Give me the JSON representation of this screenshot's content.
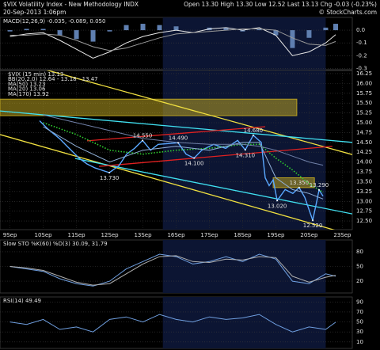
{
  "header": {
    "title": "$VIX Volatility Index - New Methodology INDX",
    "date": "20-Sep-2013 1:06pm",
    "quote": "Open 13.30 High 13.30 Low 12.52 Last 13.13 Chg -0.03 (-0.23%)",
    "source": "© StockCharts.com"
  },
  "chart_data": [
    {
      "type": "line",
      "title": "MACD(12,26,9) -0.035, -0.089, 0.050",
      "x": [
        0,
        0.5,
        1,
        1.5,
        2,
        2.5,
        3,
        3.5,
        4,
        4.5,
        5,
        5.5,
        6,
        6.5,
        7,
        7.5,
        8,
        8.5,
        9,
        9.5,
        9.8
      ],
      "xlim": [
        -0.3,
        10.3
      ],
      "ylim": [
        -0.31,
        0.1
      ],
      "yticks": [
        {
          "value": 0,
          "label": "0.0"
        },
        -0.1,
        -0.2,
        -0.3
      ],
      "grid": true,
      "series": [
        {
          "type": "bar",
          "color": "#5f7fb0",
          "values": [
            -0.01,
            0.01,
            0.01,
            -0.04,
            -0.07,
            -0.09,
            -0.01,
            0.04,
            0.05,
            0.04,
            0.03,
            0.0,
            0.02,
            0.02,
            -0.01,
            0.01,
            -0.04,
            -0.14,
            -0.06,
            0.02,
            0.05
          ]
        },
        {
          "type": "line",
          "color": "#e8e8e8",
          "values": [
            -0.05,
            -0.03,
            -0.02,
            -0.08,
            -0.15,
            -0.22,
            -0.17,
            -0.1,
            -0.05,
            -0.02,
            0.0,
            -0.02,
            0.01,
            0.02,
            0.0,
            0.02,
            -0.04,
            -0.2,
            -0.17,
            -0.1,
            -0.035
          ]
        },
        {
          "type": "line",
          "color": "#9a9a9a",
          "values": [
            -0.04,
            -0.04,
            -0.03,
            -0.04,
            -0.08,
            -0.13,
            -0.16,
            -0.14,
            -0.1,
            -0.06,
            -0.03,
            -0.02,
            -0.01,
            0.0,
            0.01,
            0.01,
            0.0,
            -0.06,
            -0.11,
            -0.12,
            -0.089
          ]
        }
      ]
    },
    {
      "type": "line",
      "bands_label": "BB(20,2.0) 12.64 - 13.18 - 13.47",
      "bands_color": "#b070d0",
      "xlim": [
        -0.3,
        10.3
      ],
      "ylim": [
        12.28,
        16.33
      ],
      "xticks": [
        {
          "value": 0,
          "label": "9Sep"
        },
        {
          "value": 1,
          "label": "10Sep"
        },
        {
          "value": 2,
          "label": "11Sep"
        },
        {
          "value": 3,
          "label": "12Sep"
        },
        {
          "value": 4,
          "label": "13Sep"
        },
        {
          "value": 5,
          "label": "16Sep"
        },
        {
          "value": 6,
          "label": "17Sep"
        },
        {
          "value": 7,
          "label": "18Sep"
        },
        {
          "value": 8,
          "label": "19Sep"
        },
        {
          "value": 9,
          "label": "20Sep"
        },
        {
          "value": 10,
          "label": "23Sep"
        }
      ],
      "yticks": [
        16.25,
        {
          "value": 16,
          "label": "16.00"
        },
        15.75,
        {
          "value": 15.5,
          "label": "15.50"
        },
        15.25,
        {
          "value": 15,
          "label": "15.00"
        },
        14.75,
        {
          "value": 14.5,
          "label": "14.50"
        },
        14.25,
        {
          "value": 14,
          "label": "14.00"
        },
        13.75,
        {
          "value": 13.5,
          "label": "13.50"
        },
        13.25,
        {
          "value": 13,
          "label": "13.00"
        },
        12.75,
        {
          "value": 12.5,
          "label": "12.50"
        }
      ],
      "grid": true,
      "boxes": [
        {
          "color": "#b8a020",
          "x": [
            -0.3,
            8.63
          ],
          "values": [
            15.6,
            15.18
          ]
        },
        {
          "color": "#b8a020",
          "x": [
            7.92,
            9.16
          ],
          "values": [
            13.6,
            13.35
          ]
        }
      ],
      "trendlines": [
        {
          "color": "#f0e040",
          "x": [
            -0.3,
            10.3
          ],
          "values": [
            16.67,
            14.19
          ]
        },
        {
          "color": "#f0e040",
          "x": [
            -0.3,
            10.3
          ],
          "values": [
            14.7,
            12.14
          ]
        },
        {
          "color": "#40e0f0",
          "x": [
            -0.3,
            10.3
          ],
          "values": [
            15.3,
            14.5
          ]
        },
        {
          "color": "#40e0f0",
          "x": [
            1.96,
            10.3
          ],
          "values": [
            14.09,
            12.68
          ]
        },
        {
          "color": "#e02020",
          "x": [
            2.32,
            7.68
          ],
          "values": [
            14.54,
            14.9
          ]
        },
        {
          "color": "#e02020",
          "x": [
            2.68,
            9.7
          ],
          "values": [
            13.89,
            14.4
          ]
        }
      ],
      "series": [
        {
          "name": "$VIX (15 min) 13.13",
          "color": "#5aa8ff",
          "width": 1.4,
          "x": [
            0.89,
            1.13,
            1.49,
            1.72,
            2.08,
            2.32,
            2.56,
            2.99,
            3.27,
            3.51,
            3.75,
            3.99,
            4.23,
            4.46,
            5.06,
            5.3,
            5.54,
            5.77,
            6.13,
            6.49,
            6.85,
            7.08,
            7.32,
            7.56,
            7.68,
            7.8,
            7.92,
            8.04,
            8.28,
            8.51,
            8.7,
            8.87,
            9.11,
            9.23,
            9.3,
            9.42
          ],
          "values": [
            15.05,
            14.85,
            14.6,
            14.4,
            14.1,
            13.95,
            13.85,
            13.73,
            13.9,
            14.2,
            14.35,
            14.55,
            14.3,
            14.45,
            14.49,
            14.2,
            14.1,
            14.3,
            14.45,
            14.35,
            14.55,
            14.31,
            14.68,
            14.5,
            13.6,
            13.4,
            13.55,
            13.02,
            13.3,
            13.2,
            13.35,
            13.1,
            12.52,
            13.0,
            13.29,
            13.13
          ]
        },
        {
          "name": "MA(50) 13.23",
          "color": "#30d030",
          "style": "dotted",
          "width": 1.6,
          "x": [
            1,
            2,
            3,
            4,
            5,
            6,
            7,
            7.5,
            8,
            8.5,
            9,
            9.42
          ],
          "values": [
            15.0,
            14.7,
            14.3,
            14.2,
            14.3,
            14.35,
            14.45,
            14.45,
            14.1,
            13.8,
            13.45,
            13.23
          ]
        },
        {
          "name": "MA(20) 13.06",
          "color": "#90b0d8",
          "width": 1,
          "x": [
            1,
            2,
            3,
            4,
            5,
            6,
            7,
            7.5,
            8,
            8.5,
            9,
            9.42
          ],
          "values": [
            14.9,
            14.4,
            14.0,
            14.3,
            14.4,
            14.3,
            14.5,
            14.5,
            13.6,
            13.3,
            13.2,
            13.06
          ]
        },
        {
          "name": "MA(170) 13.92",
          "color": "#7080a8",
          "width": 1,
          "x": [
            1,
            2,
            3,
            4,
            5,
            6,
            7,
            7.5,
            8,
            8.5,
            9,
            9.42
          ],
          "values": [
            15.2,
            15.0,
            14.8,
            14.6,
            14.5,
            14.45,
            14.45,
            14.4,
            14.3,
            14.15,
            14.0,
            13.92
          ]
        }
      ],
      "annotations": [
        {
          "x": 2.99,
          "value": 13.73,
          "label": "13.730",
          "pos": "below"
        },
        {
          "x": 3.99,
          "value": 14.55,
          "label": "14.550",
          "pos": "above"
        },
        {
          "x": 5.06,
          "value": 14.49,
          "label": "14.490",
          "pos": "above"
        },
        {
          "x": 5.54,
          "value": 14.1,
          "label": "14.100",
          "pos": "below"
        },
        {
          "x": 7.08,
          "value": 14.31,
          "label": "14.310",
          "pos": "below"
        },
        {
          "x": 7.32,
          "value": 14.68,
          "label": "14.680",
          "pos": "above"
        },
        {
          "x": 8.04,
          "value": 13.02,
          "label": "13.020",
          "pos": "below"
        },
        {
          "x": 8.7,
          "value": 13.35,
          "label": "13.350",
          "pos": "above"
        },
        {
          "x": 9.3,
          "value": 13.29,
          "label": "13.290",
          "pos": "above"
        },
        {
          "x": 9.11,
          "value": 12.52,
          "label": "12.520",
          "pos": "below"
        }
      ]
    },
    {
      "type": "line",
      "title": "Slow STO %K(60) %D(3) 30.09, 31.79",
      "x": [
        0,
        0.5,
        1,
        1.5,
        2,
        2.5,
        3,
        3.5,
        4,
        4.5,
        5,
        5.5,
        6,
        6.5,
        7,
        7.5,
        8,
        8.5,
        9,
        9.5,
        9.8
      ],
      "xlim": [
        -0.3,
        10.3
      ],
      "ylim": [
        -4,
        104
      ],
      "yticks": [
        80,
        50,
        20
      ],
      "grid": true,
      "series": [
        {
          "type": "line",
          "color": "#6f9fe0",
          "values": [
            50,
            45,
            40,
            25,
            15,
            10,
            20,
            45,
            60,
            75,
            70,
            55,
            60,
            70,
            60,
            75,
            65,
            20,
            15,
            35,
            30.09
          ]
        },
        {
          "type": "line",
          "color": "#b0b0b0",
          "values": [
            50,
            47,
            42,
            30,
            18,
            12,
            15,
            35,
            55,
            70,
            72,
            60,
            58,
            65,
            63,
            70,
            68,
            30,
            18,
            28,
            31.79
          ]
        }
      ]
    },
    {
      "type": "line",
      "title": "RSI(14) 49.49",
      "x": [
        0,
        0.5,
        1,
        1.5,
        2,
        2.5,
        3,
        3.5,
        4,
        4.5,
        5,
        5.5,
        6,
        6.5,
        7,
        7.5,
        8,
        8.5,
        9,
        9.5,
        9.8
      ],
      "xlim": [
        -0.3,
        10.3
      ],
      "ylim": [
        -3,
        100
      ],
      "yticks": [
        90,
        70,
        50,
        30,
        10
      ],
      "grid": true,
      "series": [
        {
          "type": "line",
          "color": "#6f9fe0",
          "values": [
            50,
            45,
            55,
            35,
            40,
            30,
            55,
            60,
            50,
            65,
            55,
            50,
            60,
            55,
            58,
            65,
            45,
            30,
            40,
            35,
            49.49
          ]
        }
      ]
    }
  ]
}
